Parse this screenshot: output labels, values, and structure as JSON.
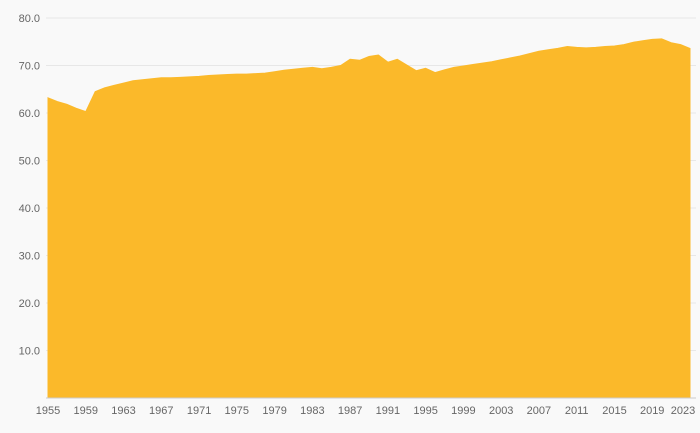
{
  "chart_data": {
    "type": "area",
    "title": "",
    "xlabel": "",
    "ylabel": "",
    "ylim": [
      0,
      80
    ],
    "grid": true,
    "legend_position": "none",
    "x": [
      1955,
      1956,
      1957,
      1958,
      1959,
      1960,
      1961,
      1962,
      1963,
      1964,
      1965,
      1966,
      1967,
      1968,
      1969,
      1970,
      1971,
      1972,
      1973,
      1974,
      1975,
      1976,
      1977,
      1978,
      1979,
      1980,
      1981,
      1982,
      1983,
      1984,
      1985,
      1986,
      1987,
      1988,
      1989,
      1990,
      1991,
      1992,
      1993,
      1994,
      1995,
      1996,
      1997,
      1998,
      1999,
      2000,
      2001,
      2002,
      2003,
      2004,
      2005,
      2006,
      2007,
      2008,
      2009,
      2010,
      2011,
      2012,
      2013,
      2014,
      2015,
      2016,
      2017,
      2018,
      2019,
      2020,
      2021,
      2022,
      2023
    ],
    "values": [
      63.2,
      62.4,
      61.8,
      61.0,
      60.3,
      64.5,
      65.3,
      65.8,
      66.3,
      66.8,
      67.0,
      67.2,
      67.4,
      67.4,
      67.5,
      67.6,
      67.7,
      67.9,
      68.0,
      68.1,
      68.2,
      68.2,
      68.3,
      68.4,
      68.7,
      69.0,
      69.2,
      69.4,
      69.6,
      69.3,
      69.6,
      70.0,
      71.3,
      71.1,
      71.9,
      72.2,
      70.7,
      71.3,
      70.1,
      68.9,
      69.4,
      68.5,
      69.1,
      69.6,
      69.9,
      70.2,
      70.5,
      70.8,
      71.2,
      71.6,
      72.0,
      72.5,
      73.0,
      73.3,
      73.6,
      74.0,
      73.8,
      73.7,
      73.8,
      74.0,
      74.1,
      74.4,
      74.9,
      75.2,
      75.5,
      75.6,
      74.8,
      74.4,
      73.6
    ],
    "x_ticks": [
      1955,
      1959,
      1963,
      1967,
      1971,
      1975,
      1979,
      1983,
      1987,
      1991,
      1995,
      1999,
      2003,
      2007,
      2011,
      2015,
      2019,
      2023
    ],
    "x_tick_labels": [
      "1955",
      "1959",
      "1963",
      "1967",
      "1971",
      "1975",
      "1979",
      "1983",
      "1987",
      "1991",
      "1995",
      "1999",
      "2003",
      "2007",
      "2011",
      "2015",
      "2019",
      "2023"
    ],
    "y_ticks": [
      10,
      20,
      30,
      40,
      50,
      60,
      70,
      80
    ],
    "y_tick_labels": [
      "10.0",
      "20.0",
      "30.0",
      "40.0",
      "50.0",
      "60.0",
      "70.0",
      "80.0"
    ],
    "colors": {
      "area_fill": "#FBB92A",
      "grid_line": "#e7e7e7",
      "axis_line": "#cccccc",
      "tick_text": "#666666",
      "background": "#f9f9f9"
    }
  }
}
